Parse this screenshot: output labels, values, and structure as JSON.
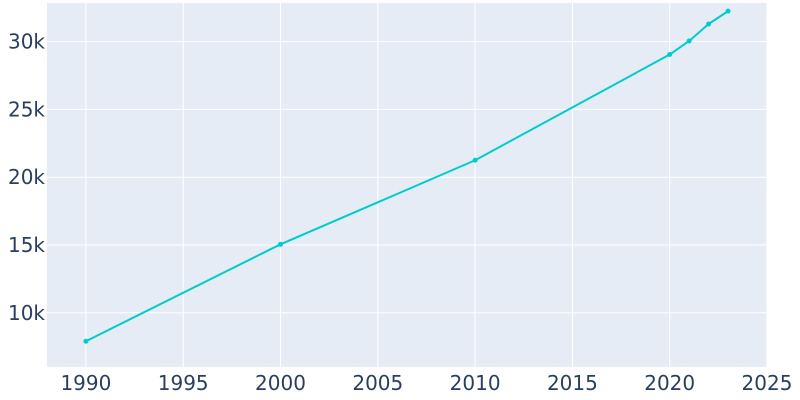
{
  "chart_data": {
    "type": "line",
    "title": "",
    "xlabel": "",
    "ylabel": "",
    "x": [
      1990,
      2000,
      2010,
      2020,
      2021,
      2022,
      2023
    ],
    "series": [
      {
        "values": [
          7900,
          15050,
          21250,
          29050,
          30050,
          31300,
          32250
        ]
      }
    ],
    "xlim": [
      1988,
      2025
    ],
    "ylim": [
      6000,
      32850
    ],
    "x_ticks": [
      1990,
      1995,
      2000,
      2005,
      2010,
      2015,
      2020,
      2025
    ],
    "x_tick_labels": [
      "1990",
      "1995",
      "2000",
      "2005",
      "2010",
      "2015",
      "2020",
      "2025"
    ],
    "y_ticks": [
      10000,
      15000,
      20000,
      25000,
      30000
    ],
    "y_tick_labels": [
      "10k",
      "15k",
      "20k",
      "25k",
      "30k"
    ],
    "grid": true,
    "legend": "none",
    "colors": {
      "line": "#00cccc",
      "plot_background": "#e5ecf6",
      "grid": "#ffffff",
      "tick_text": "#2a3f5f"
    }
  }
}
